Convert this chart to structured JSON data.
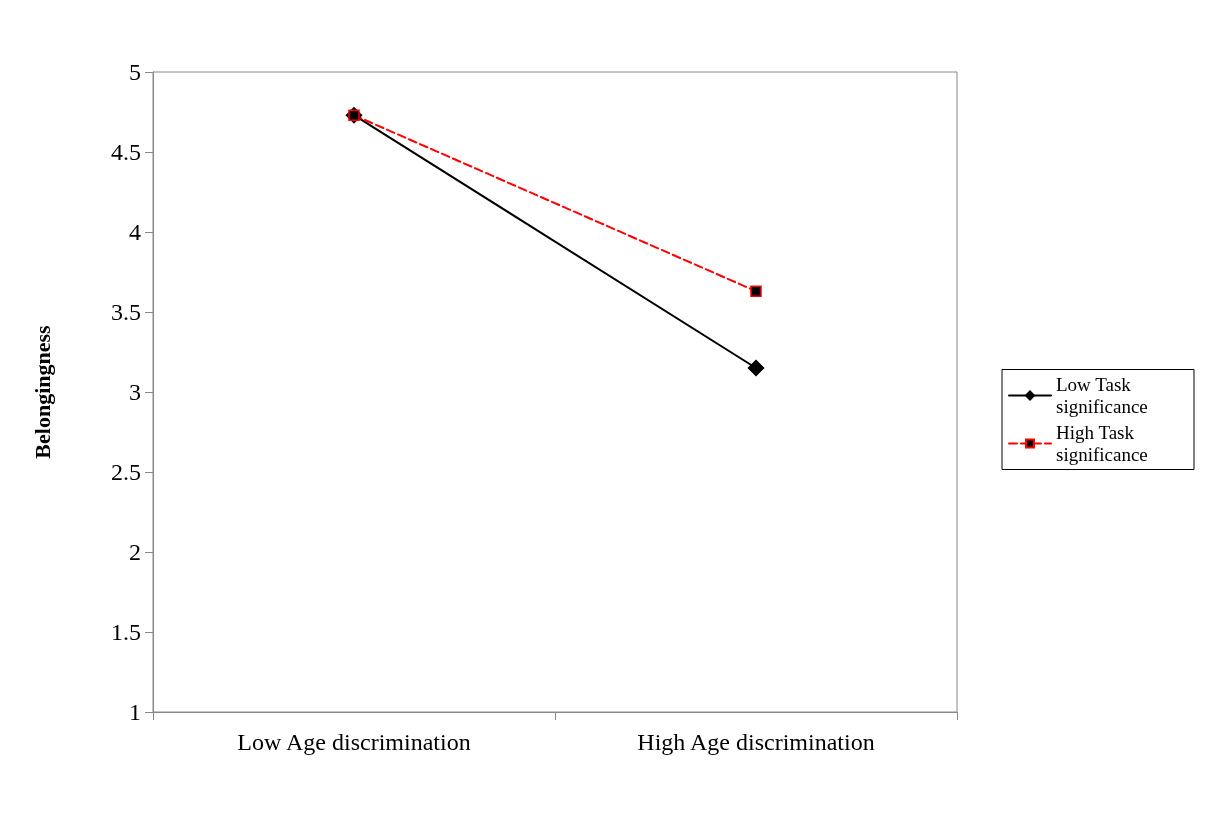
{
  "chart_data": {
    "type": "line",
    "ylabel": "Belongingness",
    "categories": [
      "Low Age discrimination",
      "High Age discrimination"
    ],
    "series": [
      {
        "name": "Low Task significance",
        "color": "#000000",
        "values": [
          4.73,
          3.15
        ],
        "marker": "diamond",
        "line_style": "solid"
      },
      {
        "name": "High Task significance",
        "color": "#ff0000",
        "values": [
          4.73,
          3.63
        ],
        "marker": "square",
        "line_style": "dashed"
      }
    ],
    "ylim": [
      1,
      5
    ],
    "yticks": [
      1,
      1.5,
      2,
      2.5,
      3,
      3.5,
      4,
      4.5,
      5
    ],
    "grid": false,
    "legend": "right"
  }
}
